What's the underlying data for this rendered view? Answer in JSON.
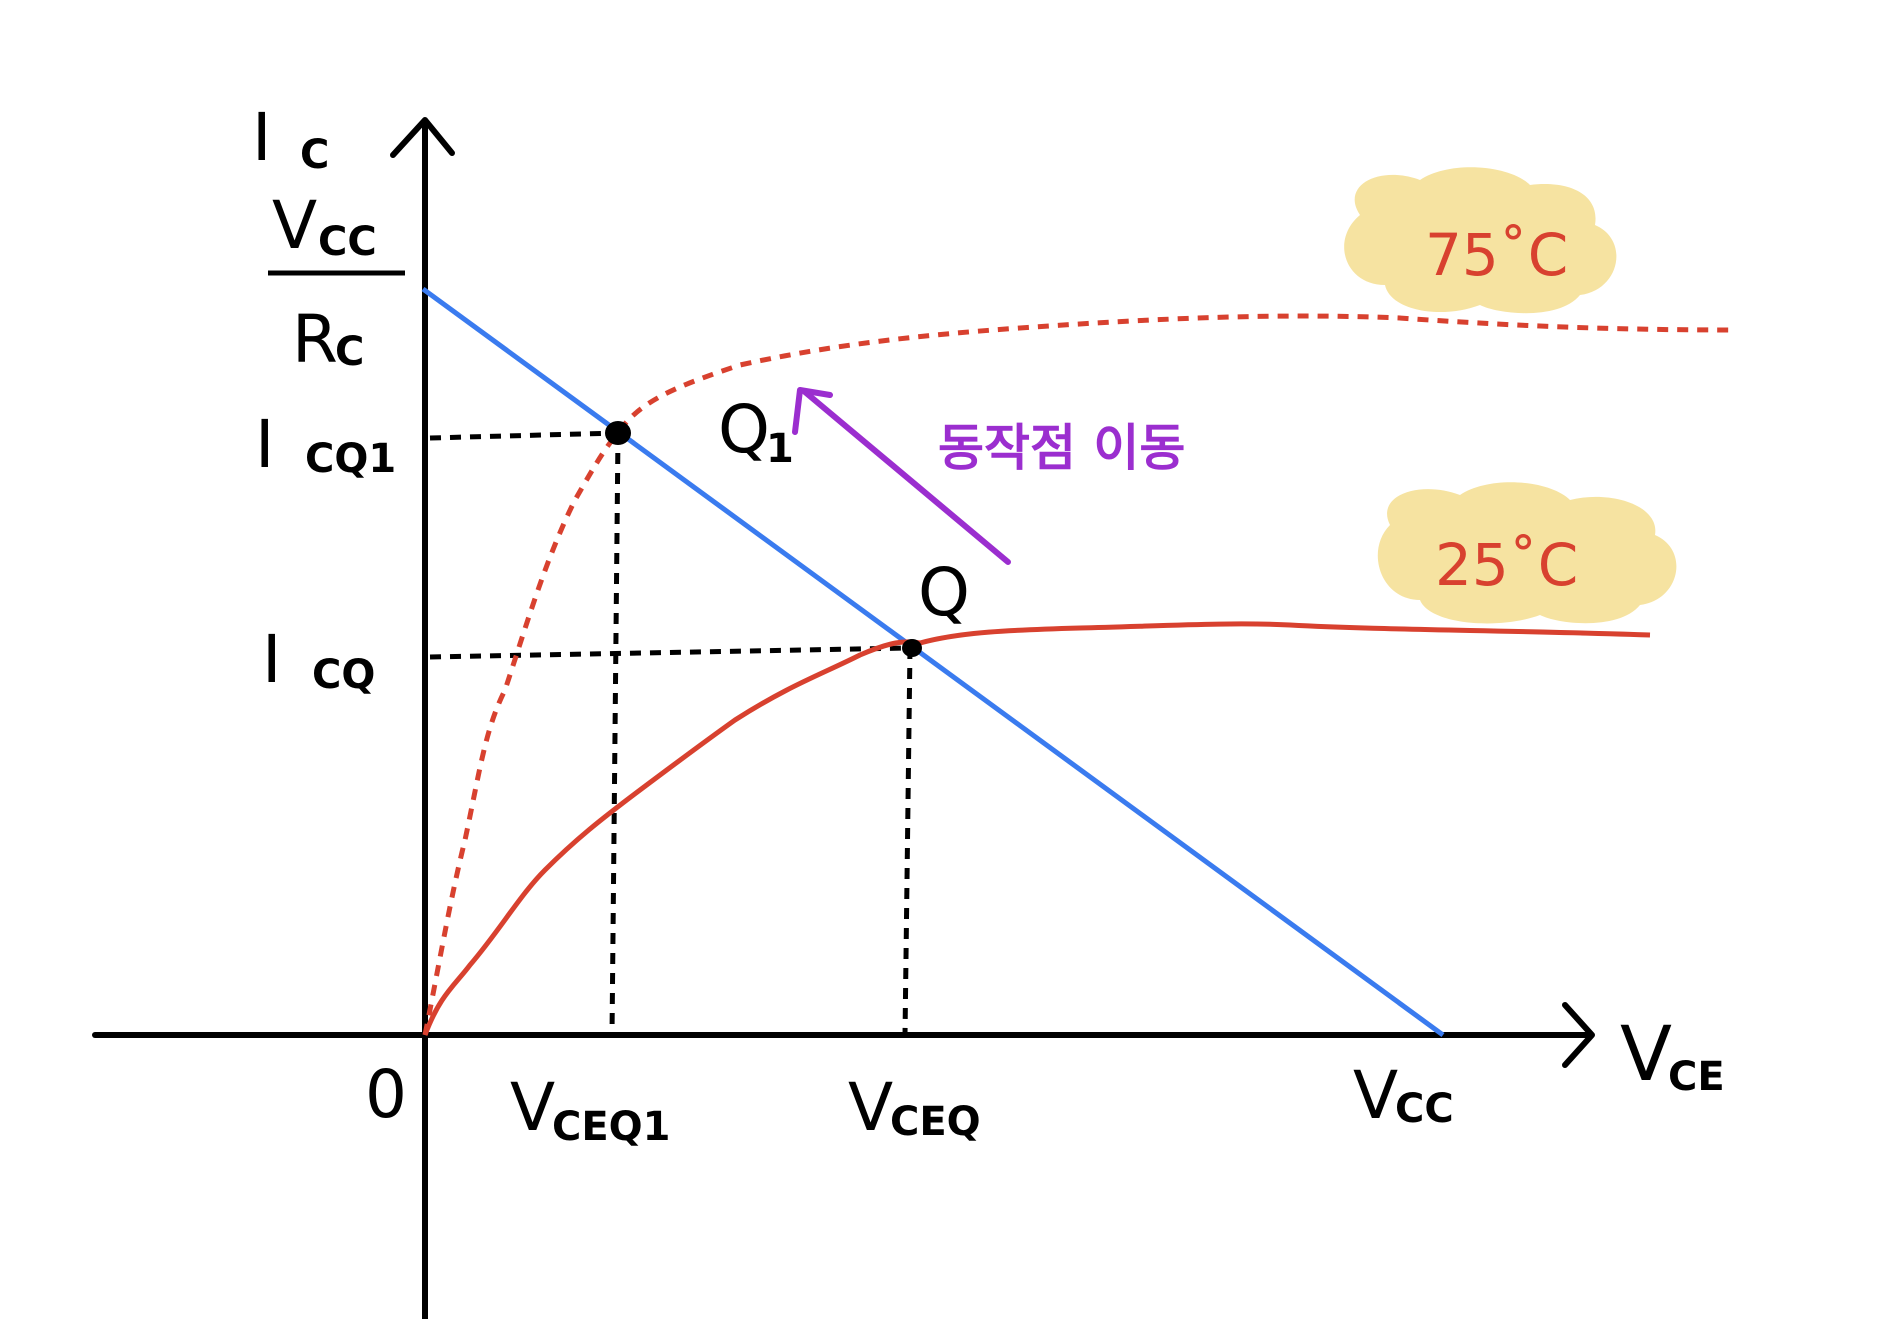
{
  "axes": {
    "y_label_main": "I",
    "y_label_sub": "C",
    "x_label_main": "V",
    "x_label_sub": "CE",
    "origin_label": "0"
  },
  "y_ticks": {
    "vcc_rc_numerator_main": "V",
    "vcc_rc_numerator_sub": "CC",
    "vcc_rc_denominator_main": "R",
    "vcc_rc_denominator_sub": "C",
    "icq1_main": "I",
    "icq1_sub": "CQ1",
    "icq_main": "I",
    "icq_sub": "CQ"
  },
  "x_ticks": {
    "vceq1_main": "V",
    "vceq1_sub": "CEQ1",
    "vceq_main": "V",
    "vceq_sub": "CEQ",
    "vcc_main": "V",
    "vcc_sub": "CC"
  },
  "points": {
    "q1_label_main": "Q",
    "q1_label_sub": "1",
    "q_label": "Q"
  },
  "annotations": {
    "move_text": "동작점 이동",
    "temp_hot": "75˚C",
    "temp_room": "25˚C"
  },
  "colors": {
    "axis": "#000000",
    "load_line": "#3a7bef",
    "curve": "#d8412f",
    "arrow": "#9b2ecf",
    "temp_bubble": "#f6e3a1"
  }
}
